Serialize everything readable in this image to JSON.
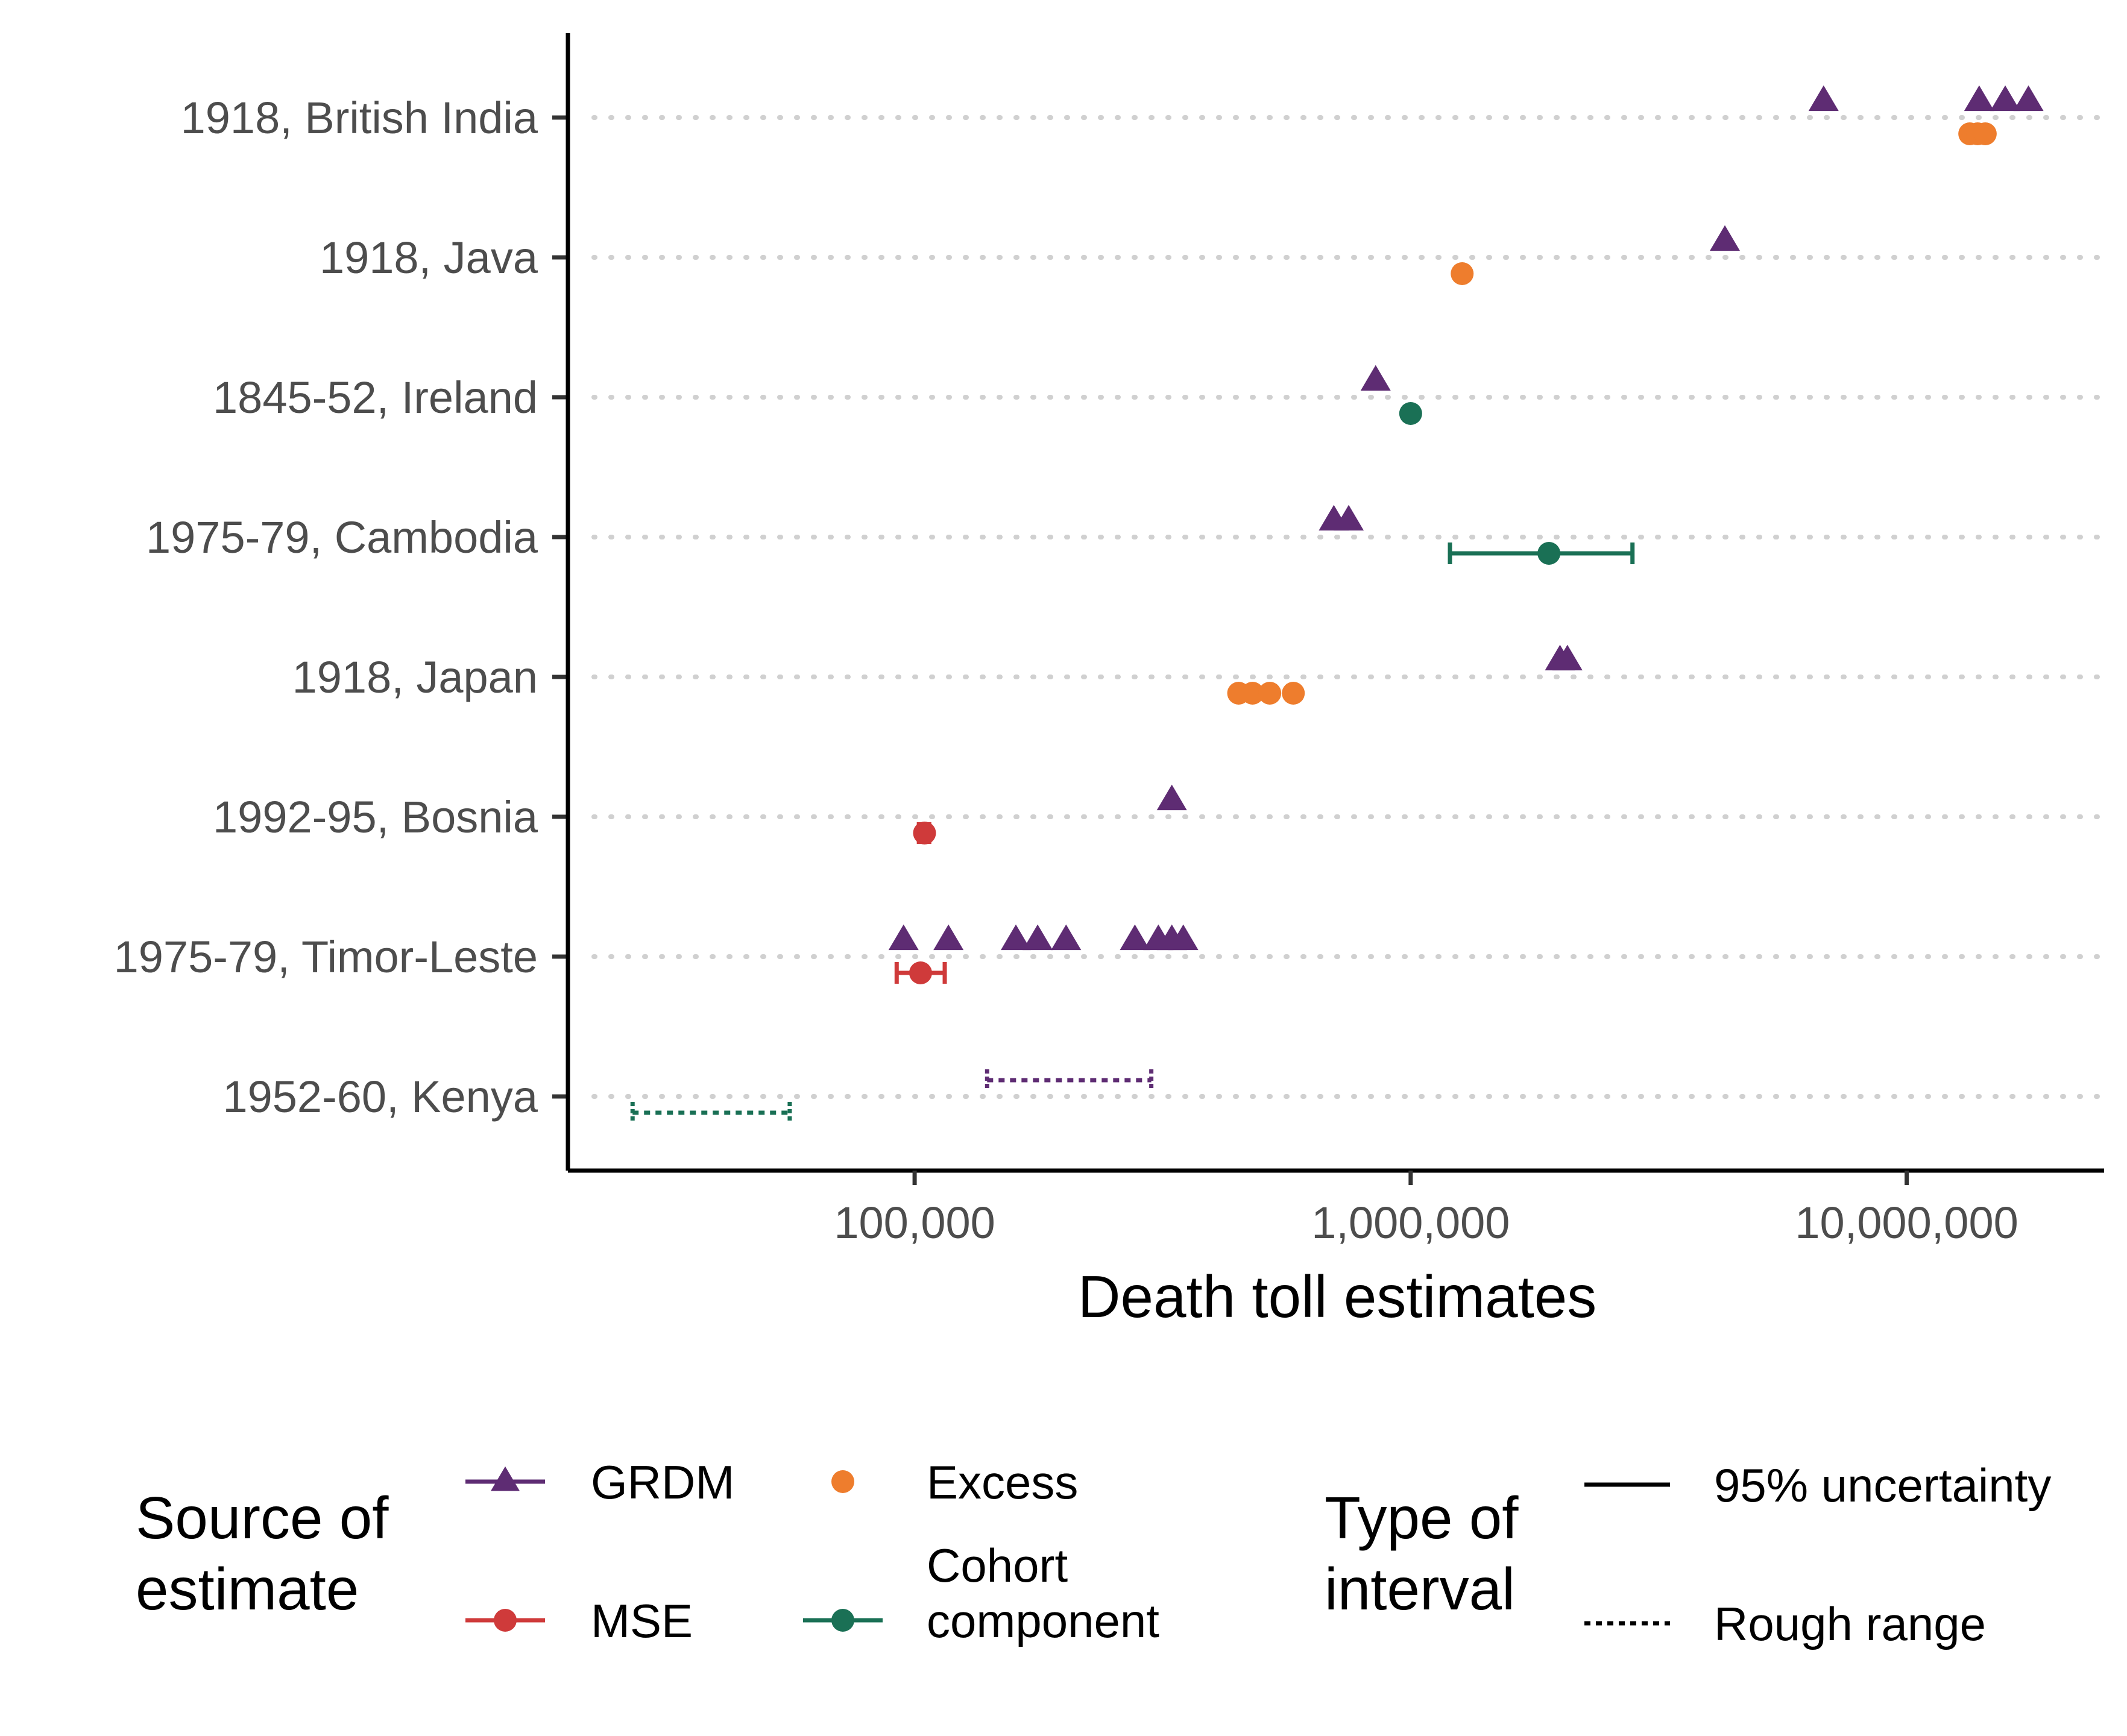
{
  "chart_data": {
    "type": "scatter",
    "x_scale": "log10",
    "xlim": [
      20000,
      25000000
    ],
    "xlabel": "Death toll estimates",
    "x_ticks": [
      {
        "value": 100000,
        "label": "100,000"
      },
      {
        "value": 1000000,
        "label": "1,000,000"
      },
      {
        "value": 10000000,
        "label": "10,000,000"
      }
    ],
    "categories": [
      "1918, British India",
      "1918, Java",
      "1845-52, Ireland",
      "1975-79, Cambodia",
      "1918, Japan",
      "1992-95, Bosnia",
      "1975-79, Timor-Leste",
      "1952-60, Kenya"
    ],
    "grid": "horizontal dotted lines at each category",
    "series": [
      {
        "name": "GRDM",
        "marker": "triangle",
        "color": "#5e2c73",
        "points": [
          {
            "category": "1918, British India",
            "x": 6800000
          },
          {
            "category": "1918, British India",
            "x": 14000000
          },
          {
            "category": "1918, British India",
            "x": 15800000
          },
          {
            "category": "1918, British India",
            "x": 17600000
          },
          {
            "category": "1918, Java",
            "x": 4300000
          },
          {
            "category": "1845-52, Ireland",
            "x": 850000
          },
          {
            "category": "1975-79, Cambodia",
            "x": 700000
          },
          {
            "category": "1975-79, Cambodia",
            "x": 750000
          },
          {
            "category": "1918, Japan",
            "x": 2000000
          },
          {
            "category": "1918, Japan",
            "x": 2070000
          },
          {
            "category": "1992-95, Bosnia",
            "x": 330000
          },
          {
            "category": "1975-79, Timor-Leste",
            "x": 95000
          },
          {
            "category": "1975-79, Timor-Leste",
            "x": 117000
          },
          {
            "category": "1975-79, Timor-Leste",
            "x": 160000
          },
          {
            "category": "1975-79, Timor-Leste",
            "x": 177000
          },
          {
            "category": "1975-79, Timor-Leste",
            "x": 202000
          },
          {
            "category": "1975-79, Timor-Leste",
            "x": 278000
          },
          {
            "category": "1975-79, Timor-Leste",
            "x": 310000
          },
          {
            "category": "1975-79, Timor-Leste",
            "x": 330000
          },
          {
            "category": "1975-79, Timor-Leste",
            "x": 348000
          }
        ],
        "intervals": [
          {
            "category": "1952-60, Kenya",
            "low": 140000,
            "high": 300000,
            "type": "Rough range"
          }
        ]
      },
      {
        "name": "MSE",
        "marker": "circle",
        "color": "#cf3a3a",
        "points": [
          {
            "category": "1992-95, Bosnia",
            "x": 104700
          },
          {
            "category": "1975-79, Timor-Leste",
            "x": 102800
          }
        ],
        "intervals": [
          {
            "category": "1992-95, Bosnia",
            "low": 102000,
            "high": 107000,
            "type": "95% uncertainty"
          },
          {
            "category": "1975-79, Timor-Leste",
            "low": 92000,
            "high": 115000,
            "type": "95% uncertainty"
          }
        ]
      },
      {
        "name": "Excess",
        "marker": "circle",
        "color": "#ee7d2d",
        "points": [
          {
            "category": "1918, British India",
            "x": 13400000
          },
          {
            "category": "1918, British India",
            "x": 13900000
          },
          {
            "category": "1918, British India",
            "x": 14400000
          },
          {
            "category": "1918, Java",
            "x": 1270000
          },
          {
            "category": "1918, Japan",
            "x": 450000
          },
          {
            "category": "1918, Japan",
            "x": 480000
          },
          {
            "category": "1918, Japan",
            "x": 520000
          },
          {
            "category": "1918, Japan",
            "x": 580000
          }
        ],
        "intervals": []
      },
      {
        "name": "Cohort component",
        "marker": "circle",
        "color": "#1a7055",
        "points": [
          {
            "category": "1845-52, Ireland",
            "x": 1000000
          },
          {
            "category": "1975-79, Cambodia",
            "x": 1900000
          }
        ],
        "intervals": [
          {
            "category": "1975-79, Cambodia",
            "low": 1200000,
            "high": 2800000,
            "type": "95% uncertainty"
          },
          {
            "category": "1952-60, Kenya",
            "low": 27000,
            "high": 56000,
            "type": "Rough range"
          }
        ]
      }
    ],
    "legends": [
      {
        "title_lines": [
          "Source of",
          "estimate"
        ],
        "entries": [
          {
            "label_lines": [
              "GRDM"
            ],
            "series": "GRDM"
          },
          {
            "label_lines": [
              "Excess"
            ],
            "series": "Excess"
          },
          {
            "label_lines": [
              "MSE"
            ],
            "series": "MSE"
          },
          {
            "label_lines": [
              "Cohort",
              "component"
            ],
            "series": "Cohort component"
          }
        ]
      },
      {
        "title_lines": [
          "Type of",
          "interval"
        ],
        "entries": [
          {
            "label_lines": [
              "95% uncertainty"
            ],
            "line": "solid"
          },
          {
            "label_lines": [
              "Rough range"
            ],
            "line": "dotted"
          }
        ]
      }
    ],
    "legend_position": "bottom"
  }
}
